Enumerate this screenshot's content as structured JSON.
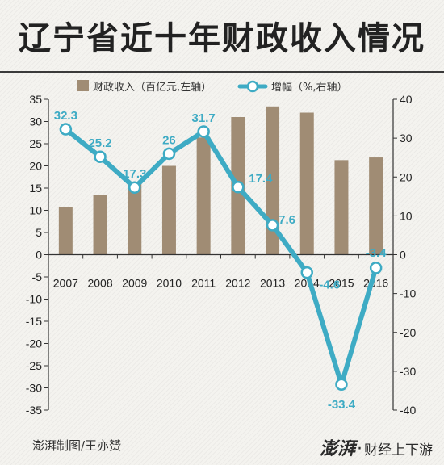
{
  "title": "辽宁省近十年财政收入情况",
  "footer": {
    "credit": "澎湃制图/王亦赟",
    "brand_name": "澎湃",
    "brand_dot": "·",
    "brand_sub": "财经上下游"
  },
  "colors": {
    "bar": "#a08c74",
    "line": "#3eabc4",
    "label": "#3eabc4"
  },
  "chart_data": {
    "type": "bar+line",
    "legend": {
      "placement": "top",
      "bar_label": "财政收入（百亿元,左轴）",
      "line_label": "增幅（%,右轴）"
    },
    "categories": [
      "2007",
      "2008",
      "2009",
      "2010",
      "2011",
      "2012",
      "2013",
      "2014",
      "2015",
      "2016"
    ],
    "series": [
      {
        "name": "财政收入（百亿元,左轴）",
        "type": "bar",
        "axis": "left",
        "values": [
          10.8,
          13.5,
          15.9,
          20.0,
          26.4,
          31.0,
          33.4,
          32.0,
          21.3,
          21.9
        ]
      },
      {
        "name": "增幅（%,右轴）",
        "type": "line",
        "axis": "right",
        "values": [
          32.3,
          25.2,
          17.3,
          26,
          31.7,
          17.4,
          7.6,
          -4.6,
          -33.4,
          -3.4
        ],
        "labels": [
          "32.3",
          "25.2",
          "17.3",
          "26",
          "31.7",
          "17.4",
          "7.6",
          "-4.6",
          "-33.4",
          "-3.4"
        ]
      }
    ],
    "left_axis": {
      "range": [
        -35,
        35
      ],
      "ticks": [
        "35",
        "30",
        "25",
        "20",
        "15",
        "10",
        "5",
        "0",
        "-5",
        "-10",
        "-15",
        "-20",
        "-25",
        "-30",
        "-35"
      ]
    },
    "right_axis": {
      "range": [
        -40,
        40
      ],
      "ticks": [
        "40",
        "30",
        "20",
        "10",
        "0",
        "-10",
        "-20",
        "-30",
        "-40"
      ]
    },
    "grid": false
  }
}
